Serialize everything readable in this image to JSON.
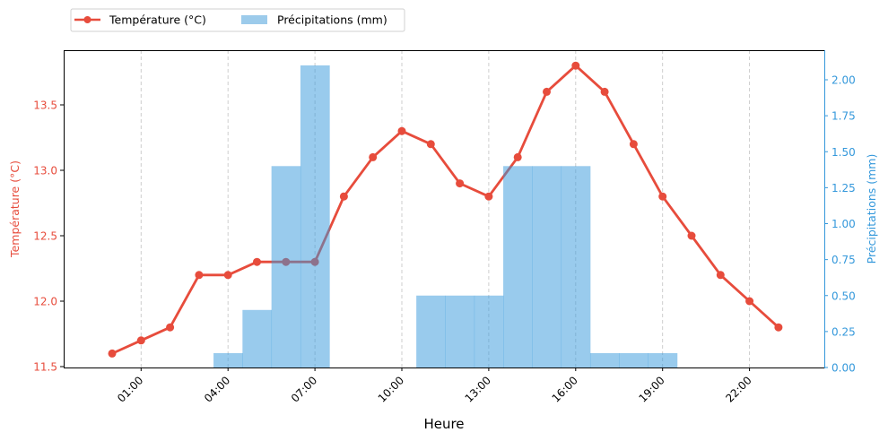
{
  "chart_data": {
    "type": "bar+line",
    "title": "",
    "xlabel": "Heure",
    "categories": [
      "00:00",
      "01:00",
      "02:00",
      "03:00",
      "04:00",
      "05:00",
      "06:00",
      "07:00",
      "08:00",
      "09:00",
      "10:00",
      "11:00",
      "12:00",
      "13:00",
      "14:00",
      "15:00",
      "16:00",
      "17:00",
      "18:00",
      "19:00",
      "20:00",
      "21:00",
      "22:00",
      "23:00"
    ],
    "x_tick_labels": [
      "01:00",
      "04:00",
      "07:00",
      "10:00",
      "13:00",
      "16:00",
      "19:00",
      "22:00"
    ],
    "x_tick_hours": [
      1,
      4,
      7,
      10,
      13,
      16,
      19,
      22
    ],
    "x_range_hours": [
      -1.68,
      24.6
    ],
    "grid": "x-only, dashed",
    "legend_position": "top-left, outside plot",
    "series": [
      {
        "name": "Température (°C)",
        "type": "line",
        "axis": "left",
        "color": "#e74c3c",
        "marker": "circle",
        "values": [
          11.6,
          11.7,
          11.8,
          12.2,
          12.2,
          12.3,
          12.3,
          12.3,
          12.8,
          13.1,
          13.3,
          13.2,
          12.9,
          12.8,
          13.1,
          13.6,
          13.8,
          13.6,
          13.2,
          12.8,
          12.5,
          12.2,
          12.0,
          11.8
        ]
      },
      {
        "name": "Précipitations (mm)",
        "type": "bar",
        "axis": "right",
        "color": "#3498db",
        "alpha": 0.5,
        "values": [
          0,
          0,
          0,
          0,
          0.1,
          0.4,
          1.4,
          2.1,
          0,
          0,
          0,
          0.5,
          0.5,
          0.5,
          1.4,
          1.4,
          1.4,
          0.1,
          0.1,
          0.1,
          0,
          0,
          0,
          0
        ]
      }
    ],
    "y_left": {
      "label": "Température (°C)",
      "color": "#e74c3c",
      "ylim": [
        11.49,
        13.89
      ],
      "ticks": [
        "11.5",
        "12.0",
        "12.5",
        "13.0",
        "13.5"
      ],
      "tick_values": [
        11.5,
        12.0,
        12.5,
        13.0,
        13.5
      ]
    },
    "y_right": {
      "label": "Précipitations (mm)",
      "color": "#3498db",
      "ylim": [
        0,
        2.2
      ],
      "ticks": [
        "0.00",
        "0.25",
        "0.50",
        "0.75",
        "1.00",
        "1.25",
        "1.50",
        "1.75",
        "2.00"
      ],
      "tick_values": [
        0,
        0.25,
        0.5,
        0.75,
        1.0,
        1.25,
        1.5,
        1.75,
        2.0
      ]
    }
  },
  "legend": {
    "items": [
      {
        "label": "Température (°C)",
        "swatch": "line-marker",
        "color": "#e74c3c"
      },
      {
        "label": "Précipitations (mm)",
        "swatch": "patch",
        "color": "#9ccbeb"
      }
    ]
  }
}
